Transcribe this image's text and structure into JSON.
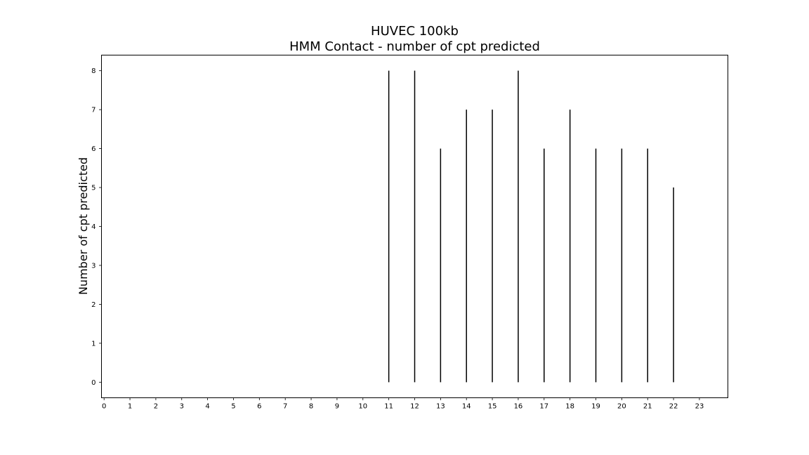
{
  "chart_data": {
    "type": "bar",
    "title": "HUVEC 100kb",
    "subtitle": "HMM Contact - number of cpt predicted",
    "xlabel": "",
    "ylabel": "Number of cpt predicted",
    "x": [
      11,
      12,
      13,
      14,
      15,
      16,
      17,
      18,
      19,
      20,
      21,
      22
    ],
    "values": [
      8,
      8,
      6,
      7,
      7,
      8,
      6,
      7,
      6,
      6,
      6,
      5
    ],
    "xticks": [
      "0",
      "1",
      "2",
      "3",
      "4",
      "5",
      "6",
      "7",
      "8",
      "9",
      "10",
      "11",
      "12",
      "13",
      "14",
      "15",
      "16",
      "17",
      "18",
      "19",
      "20",
      "21",
      "22",
      "23"
    ],
    "yticks": [
      "0",
      "1",
      "2",
      "3",
      "4",
      "5",
      "6",
      "7",
      "8"
    ],
    "xlim": [
      -0.1,
      24.1
    ],
    "ylim": [
      -0.4,
      8.4
    ],
    "grid": false,
    "bar_color": "#000000"
  }
}
